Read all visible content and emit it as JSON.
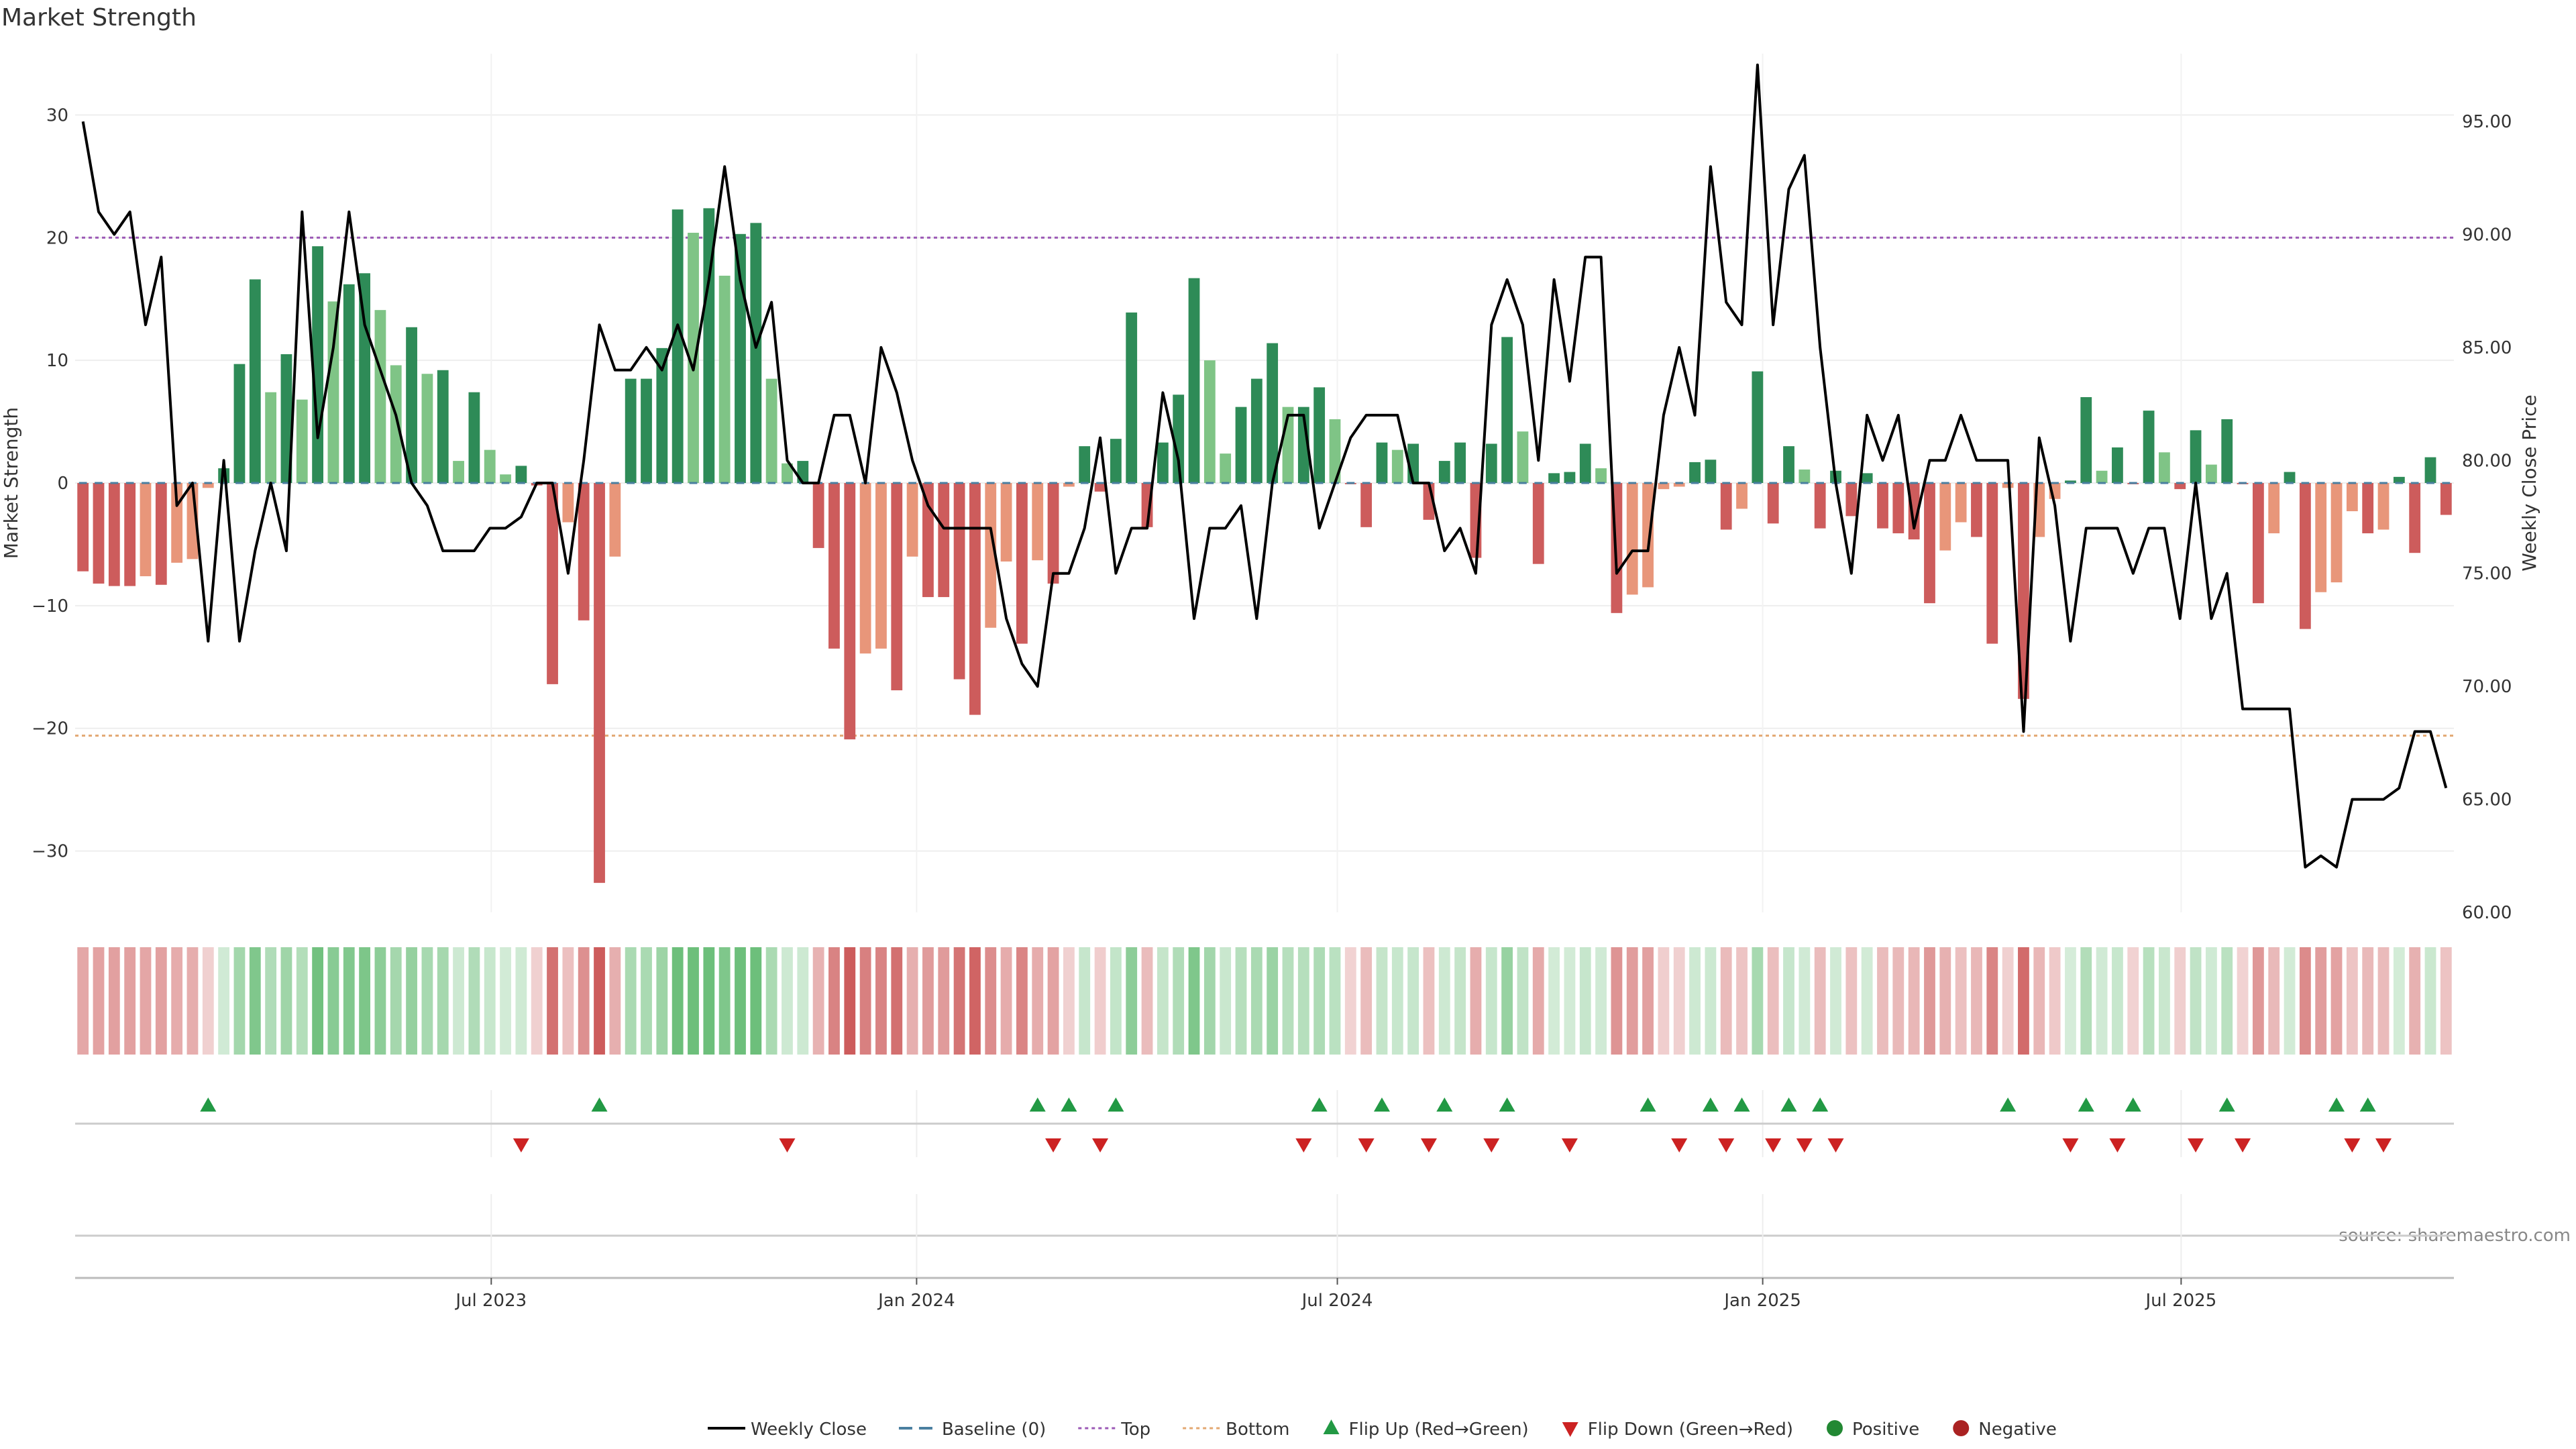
{
  "chart_data": {
    "type": "bar",
    "title": "Market Strength",
    "ylabel": "Market Strength",
    "y2label": "Weekly Close Price",
    "ylim": [
      -35,
      35
    ],
    "yticks": [
      -30,
      -20,
      -10,
      0,
      10,
      20,
      30
    ],
    "ytick_labels": [
      "−30",
      "−20",
      "−10",
      "0",
      "10",
      "20",
      "30"
    ],
    "y2lim": [
      60,
      98
    ],
    "y2ticks": [
      60,
      65,
      70,
      75,
      80,
      85,
      90,
      95
    ],
    "y2tick_labels": [
      "60.00",
      "65.00",
      "70.00",
      "75.00",
      "80.00",
      "85.00",
      "90.00",
      "95.00"
    ],
    "top_threshold": 20,
    "bottom_threshold": -20.6,
    "x_start": "2023-01-02",
    "x_end": "2025-10-27",
    "x_ticks": [
      {
        "date": "2023-07-01",
        "label": "Jul 2023"
      },
      {
        "date": "2024-01-01",
        "label": "Jan 2024"
      },
      {
        "date": "2024-07-01",
        "label": "Jul 2024"
      },
      {
        "date": "2025-01-01",
        "label": "Jan 2025"
      },
      {
        "date": "2025-07-01",
        "label": "Jul 2025"
      }
    ],
    "grid": true,
    "legend_position": "bottom-center",
    "source": "source: sharemaestro.com",
    "strength": [
      -7.2,
      -8.2,
      -8.4,
      -8.4,
      -7.6,
      -8.3,
      -6.5,
      -6.2,
      -0.4,
      1.2,
      9.7,
      16.6,
      7.4,
      10.5,
      6.8,
      19.3,
      14.8,
      16.2,
      17.1,
      14.1,
      9.6,
      12.7,
      8.9,
      9.2,
      1.8,
      7.4,
      2.7,
      0.7,
      1.4,
      -0.2,
      -16.4,
      -3.2,
      -11.2,
      -32.6,
      -6,
      8.5,
      8.5,
      11,
      22.3,
      20.4,
      22.4,
      16.9,
      20.3,
      21.2,
      8.5,
      1.6,
      1.8,
      -5.3,
      -13.5,
      -20.9,
      -13.9,
      -13.5,
      -16.9,
      -6,
      -9.3,
      -9.3,
      -16,
      -18.9,
      -11.8,
      -6.4,
      -13.1,
      -6.3,
      -8.2,
      -0.3,
      3,
      -0.7,
      3.6,
      13.9,
      -3.6,
      3.3,
      7.2,
      16.7,
      10,
      2.4,
      6.2,
      8.5,
      11.4,
      6.2,
      6.2,
      7.8,
      5.2,
      -0.1,
      -3.6,
      3.3,
      2.7,
      3.2,
      -3,
      1.8,
      3.3,
      -6.1,
      3.2,
      11.9,
      4.2,
      -6.6,
      0.8,
      0.9,
      3.2,
      1.2,
      -10.6,
      -9.1,
      -8.5,
      -0.5,
      -0.3,
      1.7,
      1.9,
      -3.8,
      -2.1,
      9.1,
      -3.3,
      3,
      1.1,
      -3.7,
      1,
      -2.7,
      0.8,
      -3.7,
      -4.1,
      -4.6,
      -9.8,
      -5.5,
      -3.2,
      -4.4,
      -13.1,
      -0.4,
      -17.6,
      -4.4,
      -1.3,
      0.2,
      7,
      1,
      2.9,
      -0.1,
      5.9,
      2.5,
      -0.5,
      4.3,
      1.5,
      5.2,
      -0.1,
      -9.8,
      -4.1,
      0.9,
      -11.9,
      -8.9,
      -8.1,
      -2.3,
      -4.1,
      -3.8,
      0.5,
      -5.7,
      2.1,
      -2.6
    ],
    "weekly_close": [
      95,
      91,
      90,
      91,
      86,
      89,
      78,
      79,
      72,
      80,
      72,
      76,
      79,
      76,
      91,
      81,
      85,
      91,
      86,
      84,
      82,
      79,
      78,
      76,
      76,
      76,
      77,
      77,
      77.5,
      79,
      79,
      75,
      80,
      86,
      84,
      84,
      85,
      84,
      86,
      84,
      88,
      93,
      88,
      85,
      87,
      80,
      79,
      79,
      82,
      82,
      79,
      85,
      83,
      80,
      78,
      77,
      77,
      77,
      77,
      73,
      71,
      70,
      75,
      75,
      77,
      81,
      75,
      77,
      77,
      83,
      80,
      73,
      77,
      77,
      78,
      73,
      79,
      82,
      82,
      77,
      79,
      81,
      82,
      82,
      82,
      79,
      79,
      76,
      77,
      75,
      86,
      88,
      86,
      80,
      88,
      83.5,
      89,
      89,
      75,
      76,
      76,
      82,
      85,
      82,
      93,
      87,
      86,
      97.5,
      86,
      92,
      93.5,
      85,
      79,
      75,
      82,
      80,
      82,
      77,
      80,
      80,
      82,
      80,
      80,
      80,
      68,
      81,
      78,
      72,
      77,
      77,
      77,
      75,
      77,
      77,
      73,
      79,
      73,
      75,
      69,
      69,
      69,
      69,
      62,
      62.5,
      62,
      65,
      65,
      65,
      65.5,
      68,
      68,
      65.5
    ],
    "flip_up_weeks": [
      8,
      33,
      61,
      63,
      66,
      79,
      83,
      87,
      91,
      100,
      104,
      106,
      109,
      111,
      123,
      128,
      131,
      137,
      144,
      146
    ],
    "flip_down_weeks": [
      28,
      45,
      62,
      65,
      78,
      82,
      86,
      90,
      95,
      102,
      105,
      108,
      110,
      112,
      127,
      130,
      135,
      138,
      145,
      147
    ]
  },
  "legend": [
    {
      "label": "Weekly Close",
      "type": "line",
      "color": "#000000"
    },
    {
      "label": "Baseline (0)",
      "type": "dash",
      "color": "#4a7fa0"
    },
    {
      "label": "Top",
      "type": "dot",
      "color": "#9b59b6"
    },
    {
      "label": "Bottom",
      "type": "dot",
      "color": "#e3a872"
    },
    {
      "label": "Flip Up (Red→Green)",
      "type": "tri-up",
      "color": "#229944"
    },
    {
      "label": "Flip Down (Green→Red)",
      "type": "tri-down",
      "color": "#cc2222"
    },
    {
      "label": "Positive",
      "type": "circle",
      "color": "#228833"
    },
    {
      "label": "Negative",
      "type": "circle",
      "color": "#aa2222"
    }
  ],
  "colors": {
    "strong_pos": "#2e8b57",
    "weak_pos": "#7fc486",
    "strong_neg": "#cd5c5c",
    "weak_neg": "#e8967a",
    "price_line": "#000000",
    "top_line": "#9b59b6",
    "bottom_line": "#e3a872",
    "baseline": "#4a7fa0"
  }
}
